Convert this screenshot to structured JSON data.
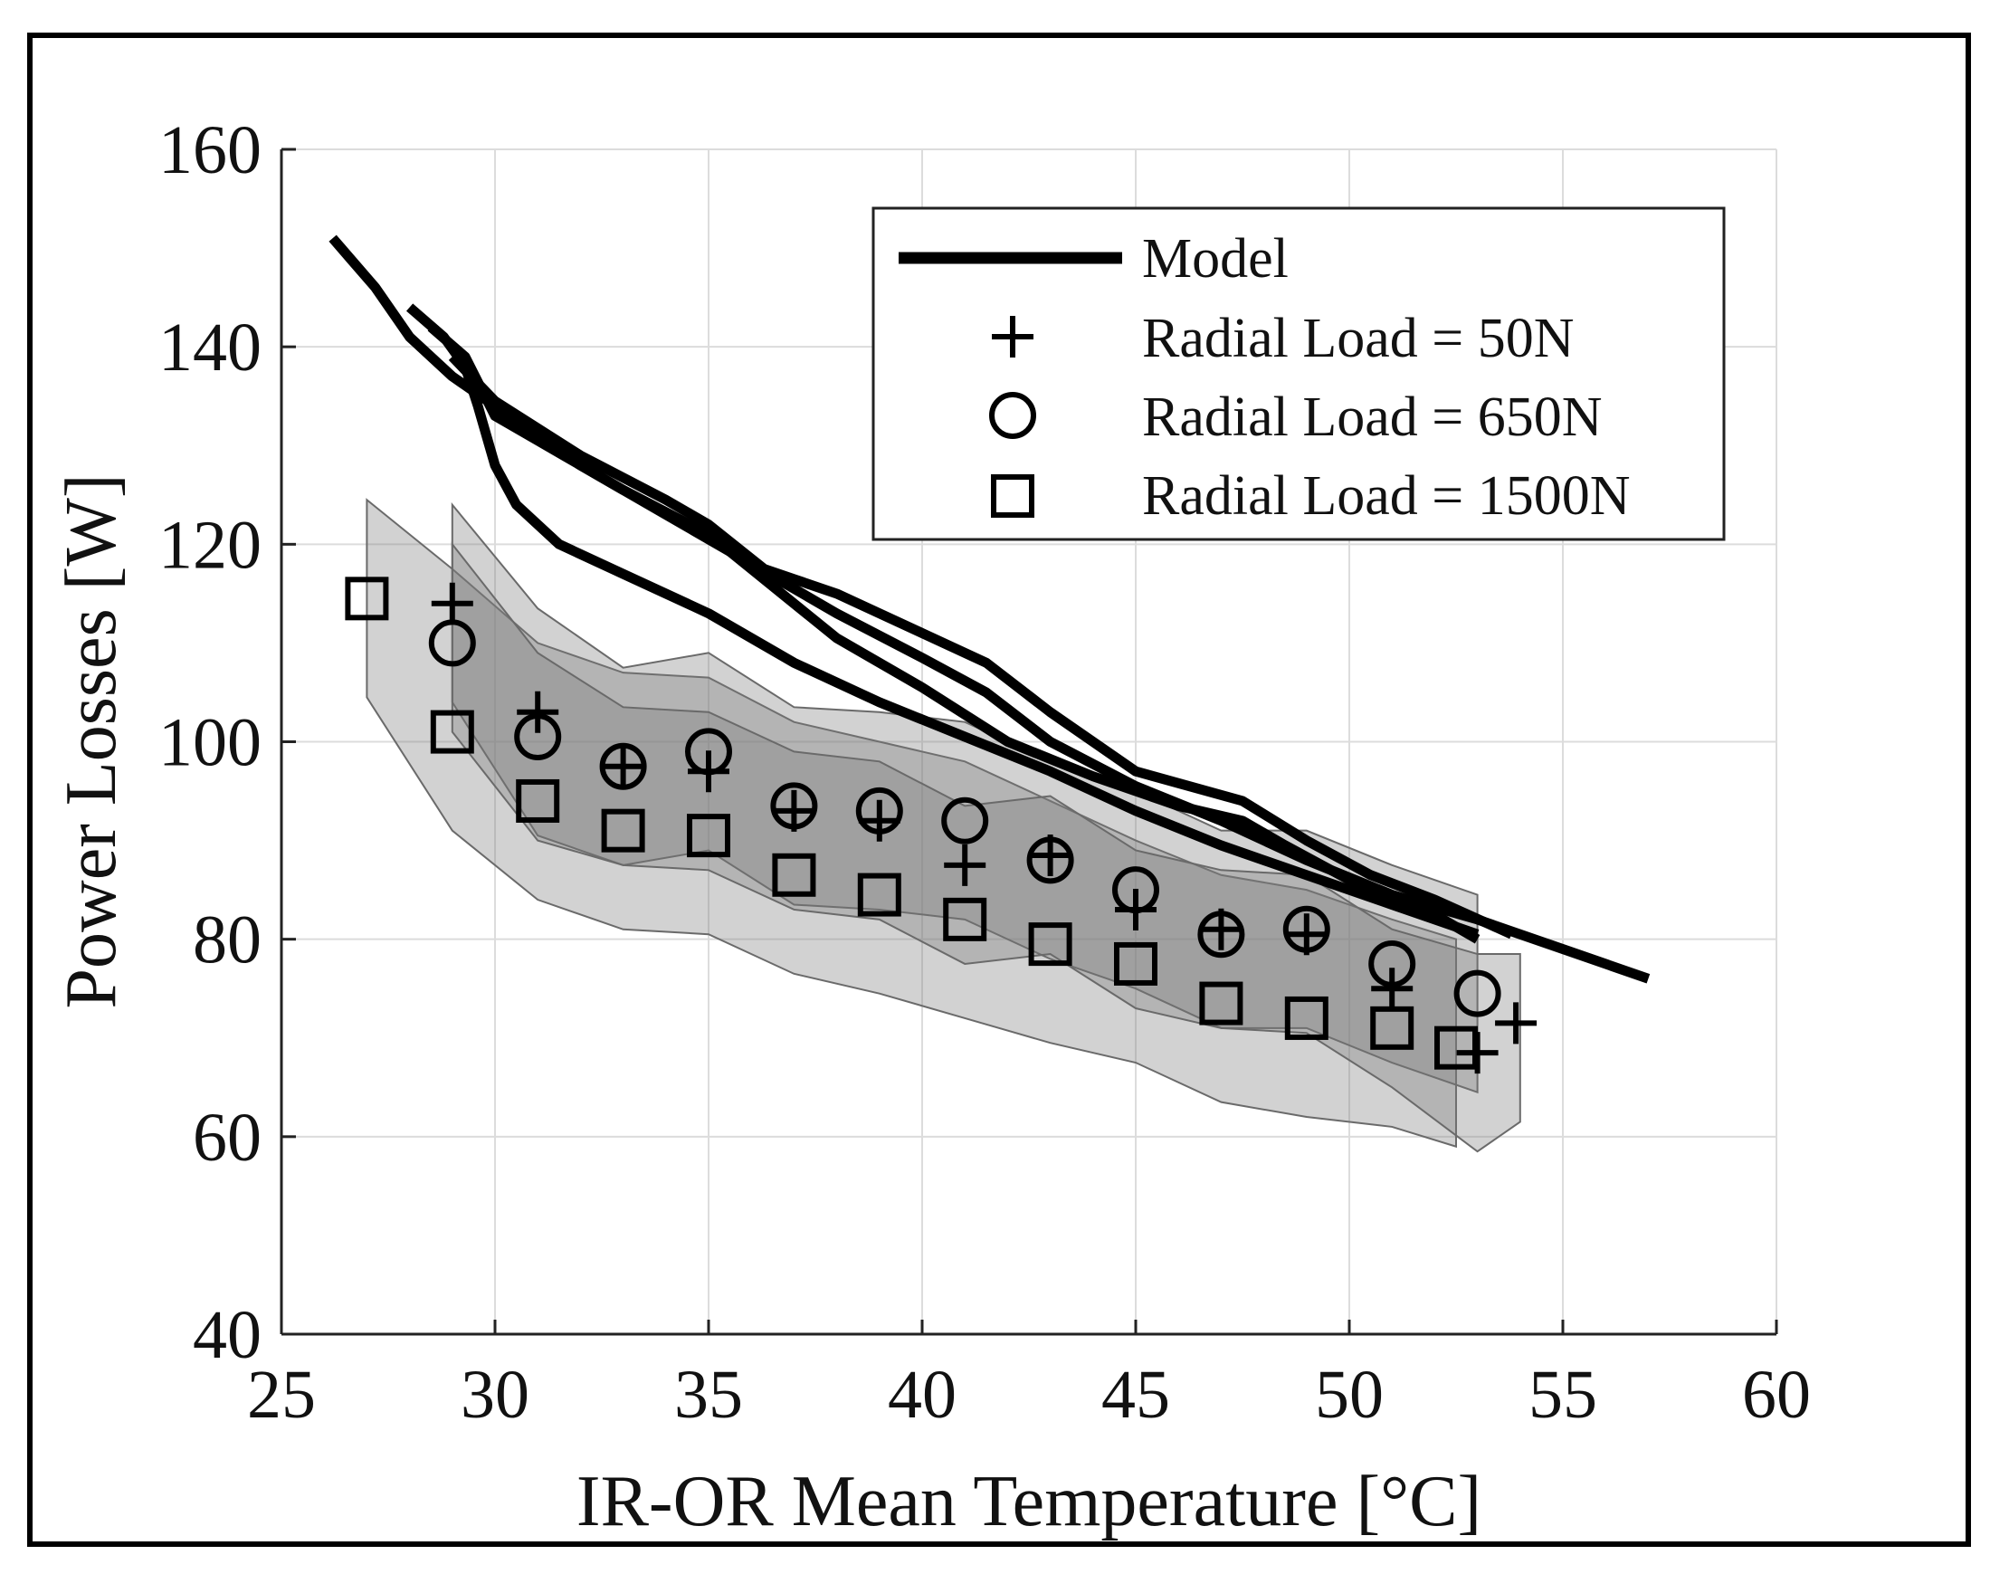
{
  "chart_data": {
    "type": "line",
    "title": "",
    "xlabel": "IR-OR Mean Temperature [°C]",
    "ylabel": "Power Losses [W]",
    "xlim": [
      25,
      60
    ],
    "ylim": [
      40,
      160
    ],
    "xticks": [
      25,
      30,
      35,
      40,
      45,
      50,
      55,
      60
    ],
    "yticks": [
      40,
      60,
      80,
      100,
      120,
      140,
      160
    ],
    "grid": true,
    "legend_position": "top-right",
    "legend": [
      "Model",
      "Radial Load = 50N",
      "Radial Load = 650N",
      "Radial Load = 1500N"
    ],
    "model_curves": [
      {
        "name": "Model",
        "points": [
          [
            26.2,
            151
          ],
          [
            27.2,
            146
          ],
          [
            28,
            141
          ],
          [
            29,
            137
          ],
          [
            30,
            134
          ],
          [
            32,
            128
          ],
          [
            34,
            123
          ],
          [
            36,
            118
          ],
          [
            38,
            113
          ],
          [
            40,
            108.5
          ],
          [
            41.5,
            105
          ],
          [
            43,
            100
          ],
          [
            45,
            95.5
          ],
          [
            47,
            92
          ],
          [
            49,
            88
          ],
          [
            51,
            84.5
          ],
          [
            53,
            82
          ],
          [
            55,
            79
          ],
          [
            57,
            76
          ]
        ]
      },
      {
        "name": "Model",
        "points": [
          [
            28,
            144
          ],
          [
            28.8,
            141
          ],
          [
            29.3,
            138
          ],
          [
            29.6,
            134
          ],
          [
            30,
            128
          ],
          [
            30.5,
            124
          ],
          [
            31.5,
            120
          ],
          [
            33,
            117
          ],
          [
            35,
            113
          ],
          [
            37,
            108
          ],
          [
            39,
            104
          ],
          [
            41,
            100.5
          ],
          [
            43,
            97
          ],
          [
            45,
            93
          ],
          [
            47,
            89.5
          ],
          [
            49,
            86.5
          ],
          [
            51,
            83.5
          ],
          [
            53,
            80.5
          ]
        ]
      },
      {
        "name": "Model",
        "points": [
          [
            28.5,
            142
          ],
          [
            29.3,
            139
          ],
          [
            30,
            133
          ],
          [
            31,
            130.5
          ],
          [
            33,
            125.5
          ],
          [
            35,
            121
          ],
          [
            37,
            114
          ],
          [
            38,
            110.5
          ],
          [
            40,
            105.5
          ],
          [
            42,
            100
          ],
          [
            44,
            96.5
          ],
          [
            46,
            93.5
          ],
          [
            47.5,
            92
          ],
          [
            48.5,
            89.5
          ],
          [
            50,
            86
          ],
          [
            52,
            82.5
          ],
          [
            53,
            80
          ]
        ]
      },
      {
        "name": "Model",
        "points": [
          [
            29,
            139
          ],
          [
            30,
            134.5
          ],
          [
            32,
            129
          ],
          [
            34,
            124.5
          ],
          [
            35,
            122
          ],
          [
            36.3,
            117.5
          ],
          [
            38,
            115
          ],
          [
            40,
            111
          ],
          [
            41.5,
            108
          ],
          [
            43,
            103
          ],
          [
            45,
            97
          ],
          [
            47.5,
            94
          ],
          [
            49,
            90
          ],
          [
            50.5,
            86.5
          ],
          [
            52,
            84
          ],
          [
            53.8,
            80.5
          ]
        ]
      }
    ],
    "series": [
      {
        "name": "Radial Load = 50N",
        "marker": "plus",
        "points": [
          [
            29,
            114
          ],
          [
            31,
            103
          ],
          [
            33,
            97.5
          ],
          [
            35,
            97
          ],
          [
            37,
            93
          ],
          [
            39,
            92
          ],
          [
            41,
            87.5
          ],
          [
            43,
            88.5
          ],
          [
            45,
            83
          ],
          [
            47,
            81
          ],
          [
            49,
            80.5
          ],
          [
            51,
            75
          ],
          [
            53,
            68.5
          ],
          [
            53.9,
            71.5
          ]
        ]
      },
      {
        "name": "Radial Load = 650N",
        "marker": "circle",
        "points": [
          [
            29,
            110
          ],
          [
            31,
            100.5
          ],
          [
            33,
            97.5
          ],
          [
            35,
            99
          ],
          [
            37,
            93.5
          ],
          [
            39,
            93
          ],
          [
            41,
            92
          ],
          [
            43,
            88
          ],
          [
            45,
            85
          ],
          [
            47,
            80.5
          ],
          [
            49,
            81
          ],
          [
            51,
            77.5
          ],
          [
            53,
            74.5
          ]
        ]
      },
      {
        "name": "Radial Load = 1500N",
        "marker": "square",
        "points": [
          [
            27,
            114.5
          ],
          [
            29,
            101
          ],
          [
            31,
            94
          ],
          [
            33,
            91
          ],
          [
            35,
            90.5
          ],
          [
            37,
            86.5
          ],
          [
            39,
            84.5
          ],
          [
            41,
            82
          ],
          [
            43,
            79.5
          ],
          [
            45,
            77.5
          ],
          [
            47,
            73.5
          ],
          [
            49,
            72
          ],
          [
            51,
            71
          ],
          [
            52.5,
            69
          ]
        ]
      }
    ],
    "bands": [
      {
        "name": "band-1500N",
        "upper": [
          [
            27,
            124.5
          ],
          [
            29,
            117.5
          ],
          [
            31,
            110
          ],
          [
            33,
            107
          ],
          [
            35,
            106.5
          ],
          [
            37,
            102
          ],
          [
            39,
            100
          ],
          [
            41,
            98
          ],
          [
            43,
            94
          ],
          [
            45,
            90
          ],
          [
            47,
            86.5
          ],
          [
            49,
            85
          ],
          [
            51,
            82
          ],
          [
            52.5,
            80
          ]
        ],
        "lower": [
          [
            27,
            104.5
          ],
          [
            29,
            91
          ],
          [
            31,
            84
          ],
          [
            33,
            81
          ],
          [
            35,
            80.5
          ],
          [
            37,
            76.5
          ],
          [
            39,
            74.5
          ],
          [
            41,
            72
          ],
          [
            43,
            69.5
          ],
          [
            45,
            67.5
          ],
          [
            47,
            63.5
          ],
          [
            49,
            62
          ],
          [
            51,
            61
          ],
          [
            52.5,
            59
          ]
        ]
      },
      {
        "name": "band-650N",
        "upper": [
          [
            29,
            124
          ],
          [
            31,
            113.5
          ],
          [
            33,
            107.5
          ],
          [
            35,
            109
          ],
          [
            37,
            103.5
          ],
          [
            39,
            103
          ],
          [
            41,
            102
          ],
          [
            43,
            98
          ],
          [
            45,
            95
          ],
          [
            47,
            91
          ],
          [
            49,
            91
          ],
          [
            51,
            87.5
          ],
          [
            53,
            84.5
          ]
        ],
        "lower": [
          [
            29,
            104
          ],
          [
            31,
            90.5
          ],
          [
            33,
            87.5
          ],
          [
            35,
            89
          ],
          [
            37,
            83.5
          ],
          [
            39,
            83
          ],
          [
            41,
            82
          ],
          [
            43,
            78
          ],
          [
            45,
            75
          ],
          [
            47,
            71
          ],
          [
            49,
            71
          ],
          [
            51,
            67.5
          ],
          [
            53,
            64.5
          ]
        ]
      },
      {
        "name": "band-50N",
        "upper": [
          [
            29,
            120
          ],
          [
            31,
            109
          ],
          [
            33,
            103.5
          ],
          [
            35,
            103
          ],
          [
            37,
            99
          ],
          [
            39,
            98
          ],
          [
            41,
            93.5
          ],
          [
            43,
            94.5
          ],
          [
            45,
            89
          ],
          [
            47,
            87
          ],
          [
            49,
            86.5
          ],
          [
            51,
            81
          ],
          [
            53,
            78.5
          ],
          [
            54,
            78.5
          ]
        ],
        "lower": [
          [
            29,
            101
          ],
          [
            31,
            90
          ],
          [
            33,
            87.5
          ],
          [
            35,
            87
          ],
          [
            37,
            83
          ],
          [
            39,
            82
          ],
          [
            41,
            77.5
          ],
          [
            43,
            78.5
          ],
          [
            45,
            73
          ],
          [
            47,
            71
          ],
          [
            49,
            70.5
          ],
          [
            51,
            65
          ],
          [
            53,
            58.5
          ],
          [
            54,
            61.5
          ]
        ]
      }
    ]
  }
}
